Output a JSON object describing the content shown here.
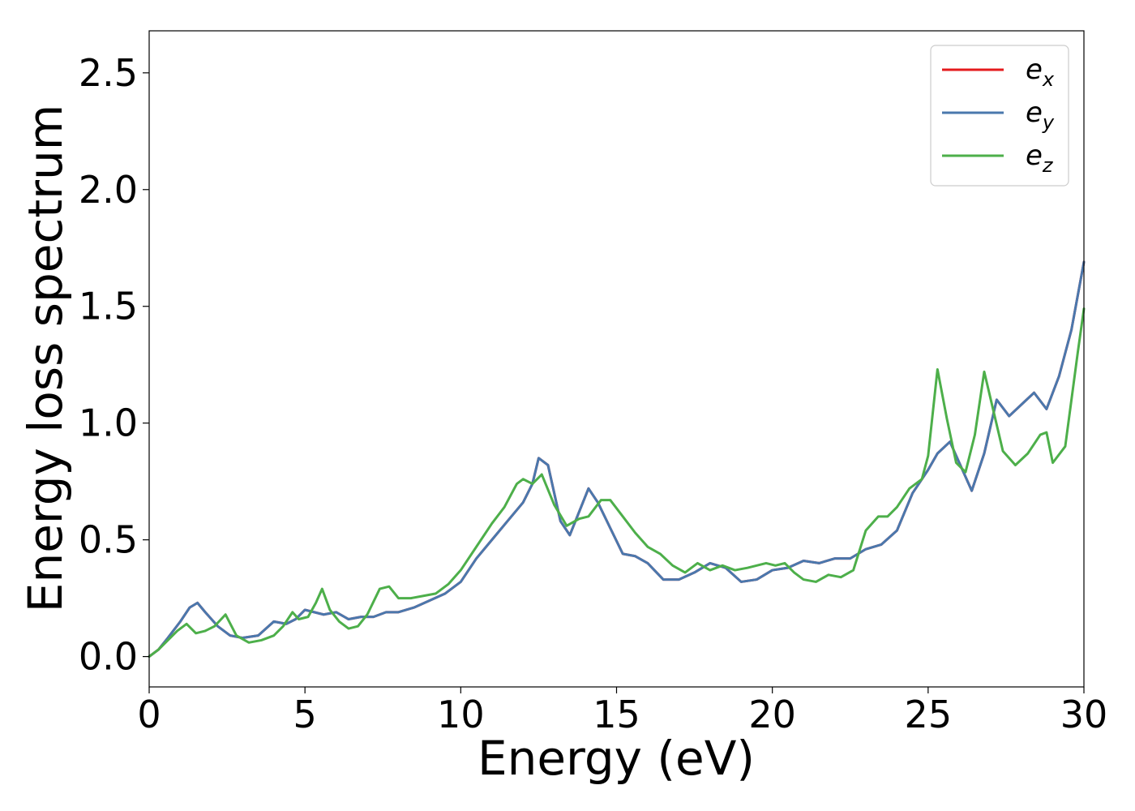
{
  "chart_data": {
    "type": "line",
    "xlabel": "Energy (eV)",
    "ylabel": "Energy loss spectrum",
    "xlim": [
      0,
      30
    ],
    "ylim": [
      -0.13,
      2.68
    ],
    "xticks": [
      0,
      5,
      10,
      15,
      20,
      25,
      30
    ],
    "yticks": [
      0.0,
      0.5,
      1.0,
      1.5,
      2.0,
      2.5
    ],
    "xtick_labels": [
      "0",
      "5",
      "10",
      "15",
      "20",
      "25",
      "30"
    ],
    "ytick_labels": [
      "0.0",
      "0.5",
      "1.0",
      "1.5",
      "2.0",
      "2.5"
    ],
    "grid": false,
    "legend_position": "top-right",
    "series": [
      {
        "name": "e_x",
        "label_main": "e",
        "label_sub": "x",
        "color": "#e41a1c",
        "x": [
          0,
          0.3,
          0.6,
          1.0,
          1.3,
          1.55,
          1.8,
          2.2,
          2.6,
          3.0,
          3.5,
          4.0,
          4.4,
          4.7,
          5.0,
          5.3,
          5.6,
          6.0,
          6.4,
          6.8,
          7.2,
          7.6,
          8.0,
          8.5,
          9.0,
          9.5,
          10.0,
          10.5,
          11.0,
          11.5,
          12.0,
          12.3,
          12.5,
          12.8,
          13.2,
          13.5,
          13.8,
          14.1,
          14.4,
          14.8,
          15.2,
          15.6,
          16.0,
          16.5,
          17.0,
          17.5,
          18.0,
          18.5,
          19.0,
          19.5,
          20.0,
          20.5,
          21.0,
          21.5,
          22.0,
          22.5,
          23.0,
          23.5,
          24.0,
          24.5,
          25.0,
          25.3,
          25.7,
          26.0,
          26.4,
          26.8,
          27.2,
          27.6,
          28.0,
          28.4,
          28.8,
          29.2,
          29.6,
          30.0
        ],
        "y": [
          0.0,
          0.03,
          0.08,
          0.15,
          0.21,
          0.23,
          0.19,
          0.13,
          0.09,
          0.08,
          0.09,
          0.15,
          0.14,
          0.16,
          0.2,
          0.19,
          0.18,
          0.19,
          0.16,
          0.17,
          0.17,
          0.19,
          0.19,
          0.21,
          0.24,
          0.27,
          0.32,
          0.42,
          0.5,
          0.58,
          0.66,
          0.74,
          0.85,
          0.82,
          0.58,
          0.52,
          0.62,
          0.72,
          0.66,
          0.55,
          0.44,
          0.43,
          0.4,
          0.33,
          0.33,
          0.36,
          0.4,
          0.38,
          0.32,
          0.33,
          0.37,
          0.38,
          0.41,
          0.4,
          0.42,
          0.42,
          0.46,
          0.48,
          0.54,
          0.7,
          0.8,
          0.87,
          0.92,
          0.83,
          0.71,
          0.87,
          1.1,
          1.03,
          1.08,
          1.13,
          1.06,
          1.2,
          1.4,
          1.69
        ]
      },
      {
        "name": "e_y",
        "label_main": "e",
        "label_sub": "y",
        "color": "#4a78ad",
        "x": [
          0,
          0.3,
          0.6,
          1.0,
          1.3,
          1.55,
          1.8,
          2.2,
          2.6,
          3.0,
          3.5,
          4.0,
          4.4,
          4.7,
          5.0,
          5.3,
          5.6,
          6.0,
          6.4,
          6.8,
          7.2,
          7.6,
          8.0,
          8.5,
          9.0,
          9.5,
          10.0,
          10.5,
          11.0,
          11.5,
          12.0,
          12.3,
          12.5,
          12.8,
          13.2,
          13.5,
          13.8,
          14.1,
          14.4,
          14.8,
          15.2,
          15.6,
          16.0,
          16.5,
          17.0,
          17.5,
          18.0,
          18.5,
          19.0,
          19.5,
          20.0,
          20.5,
          21.0,
          21.5,
          22.0,
          22.5,
          23.0,
          23.5,
          24.0,
          24.5,
          25.0,
          25.3,
          25.7,
          26.0,
          26.4,
          26.8,
          27.2,
          27.6,
          28.0,
          28.4,
          28.8,
          29.2,
          29.6,
          30.0
        ],
        "y": [
          0.0,
          0.03,
          0.08,
          0.15,
          0.21,
          0.23,
          0.19,
          0.13,
          0.09,
          0.08,
          0.09,
          0.15,
          0.14,
          0.16,
          0.2,
          0.19,
          0.18,
          0.19,
          0.16,
          0.17,
          0.17,
          0.19,
          0.19,
          0.21,
          0.24,
          0.27,
          0.32,
          0.42,
          0.5,
          0.58,
          0.66,
          0.74,
          0.85,
          0.82,
          0.58,
          0.52,
          0.62,
          0.72,
          0.66,
          0.55,
          0.44,
          0.43,
          0.4,
          0.33,
          0.33,
          0.36,
          0.4,
          0.38,
          0.32,
          0.33,
          0.37,
          0.38,
          0.41,
          0.4,
          0.42,
          0.42,
          0.46,
          0.48,
          0.54,
          0.7,
          0.8,
          0.87,
          0.92,
          0.83,
          0.71,
          0.87,
          1.1,
          1.03,
          1.08,
          1.13,
          1.06,
          1.2,
          1.4,
          1.69
        ]
      },
      {
        "name": "e_z",
        "label_main": "e",
        "label_sub": "z",
        "color": "#4daf4a",
        "x": [
          0,
          0.3,
          0.6,
          0.9,
          1.2,
          1.5,
          1.8,
          2.1,
          2.45,
          2.8,
          3.2,
          3.6,
          4.0,
          4.3,
          4.6,
          4.8,
          5.1,
          5.35,
          5.55,
          5.8,
          6.1,
          6.4,
          6.7,
          7.0,
          7.4,
          7.7,
          8.0,
          8.4,
          8.8,
          9.2,
          9.6,
          10.0,
          10.5,
          11.0,
          11.4,
          11.8,
          12.0,
          12.3,
          12.6,
          13.0,
          13.4,
          13.8,
          14.1,
          14.5,
          14.8,
          15.2,
          15.6,
          16.0,
          16.4,
          16.8,
          17.2,
          17.6,
          18.0,
          18.4,
          18.8,
          19.2,
          19.5,
          19.8,
          20.1,
          20.4,
          20.7,
          21.0,
          21.4,
          21.8,
          22.2,
          22.6,
          23.0,
          23.4,
          23.7,
          24.0,
          24.4,
          24.8,
          25.0,
          25.3,
          25.6,
          25.9,
          26.2,
          26.5,
          26.8,
          27.1,
          27.4,
          27.8,
          28.2,
          28.6,
          28.8,
          29.0,
          29.4,
          29.8,
          30.0
        ],
        "y": [
          0.0,
          0.03,
          0.07,
          0.11,
          0.14,
          0.1,
          0.11,
          0.13,
          0.18,
          0.09,
          0.06,
          0.07,
          0.09,
          0.13,
          0.19,
          0.16,
          0.17,
          0.23,
          0.29,
          0.2,
          0.15,
          0.12,
          0.13,
          0.18,
          0.29,
          0.3,
          0.25,
          0.25,
          0.26,
          0.27,
          0.31,
          0.37,
          0.47,
          0.57,
          0.64,
          0.74,
          0.76,
          0.74,
          0.78,
          0.65,
          0.56,
          0.59,
          0.6,
          0.67,
          0.67,
          0.6,
          0.53,
          0.47,
          0.44,
          0.39,
          0.36,
          0.4,
          0.37,
          0.39,
          0.37,
          0.38,
          0.39,
          0.4,
          0.39,
          0.4,
          0.36,
          0.33,
          0.32,
          0.35,
          0.34,
          0.37,
          0.54,
          0.6,
          0.6,
          0.64,
          0.72,
          0.76,
          0.86,
          1.23,
          1.02,
          0.83,
          0.79,
          0.95,
          1.22,
          1.05,
          0.88,
          0.82,
          0.87,
          0.95,
          0.96,
          0.83,
          0.9,
          1.3,
          1.49
        ]
      }
    ]
  }
}
